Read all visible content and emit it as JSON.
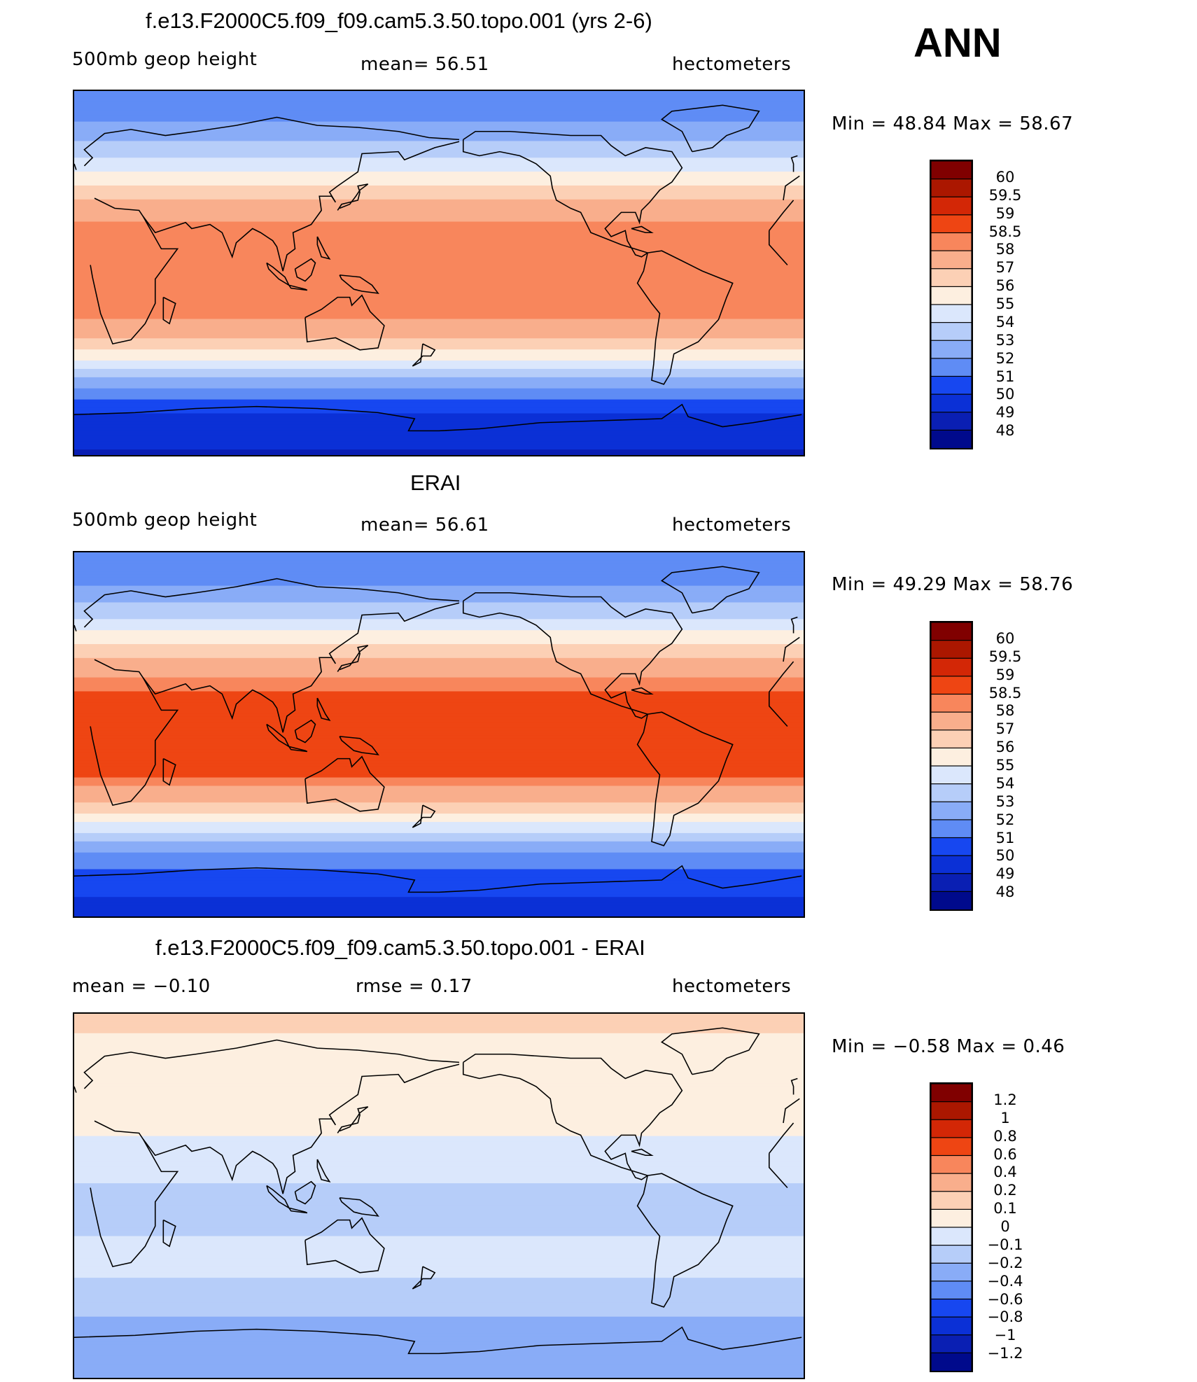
{
  "season": "ANN",
  "colors": {
    "abs_palette": [
      "#000a8c",
      "#0a1fb3",
      "#0b30d6",
      "#1747f0",
      "#3568f2",
      "#5f8cf5",
      "#89acf7",
      "#b6cdf9",
      "#dbe7fc",
      "#fdefe0",
      "#fcd0b5",
      "#f9ae8c",
      "#f8865c",
      "#f7632f",
      "#ee4513",
      "#d32706",
      "#ab1700",
      "#800000"
    ],
    "diff_palette": [
      "#000a8c",
      "#0a1fb3",
      "#0b30d6",
      "#1747f0",
      "#3568f2",
      "#5f8cf5",
      "#89acf7",
      "#b6cdf9",
      "#dbe7fc",
      "#fdefe0",
      "#fcd0b5",
      "#f9ae8c",
      "#f8865c",
      "#f7632f",
      "#ee4513",
      "#d32706",
      "#ab1700",
      "#800000"
    ],
    "coast": "#000000"
  },
  "panels": [
    {
      "title": "f.e13.F2000C5.f09_f09.cam5.3.50.topo.001 (yrs 2-6)",
      "left_label": "500mb  geop  height",
      "center_label": "mean=   56.51",
      "right_label": "hectometers",
      "min_label": "Min  =    48.84  Max  =    58.67"
    },
    {
      "title": "ERAI",
      "left_label": "500mb  geop  height",
      "center_label": "mean=   56.61",
      "right_label": "hectometers",
      "min_label": "Min  =    49.29  Max  =    58.76"
    },
    {
      "title": "f.e13.F2000C5.f09_f09.cam5.3.50.topo.001 - ERAI",
      "left_label": "mean  =    −0.10",
      "center_label": "rmse  =     0.17",
      "right_label": "hectometers",
      "min_label": "Min  =    −0.58  Max  =     0.46"
    }
  ],
  "chart_data": [
    {
      "type": "heatmap",
      "title": "f.e13.F2000C5.f09_f09.cam5.3.50.topo.001 (yrs 2-6)",
      "variable": "500mb geop height",
      "units": "hectometers",
      "mean": 56.51,
      "min": 48.84,
      "max": 58.67,
      "levels": [
        "48",
        "49",
        "50",
        "51",
        "52",
        "53",
        "54",
        "55",
        "56",
        "57",
        "58",
        "58.5",
        "59",
        "59.5",
        "60"
      ],
      "lat_profile": [
        [
          -90,
          48.9
        ],
        [
          -80,
          49.3
        ],
        [
          -70,
          50.0
        ],
        [
          -60,
          51.3
        ],
        [
          -50,
          53.4
        ],
        [
          -40,
          55.6
        ],
        [
          -30,
          57.4
        ],
        [
          -20,
          58.2
        ],
        [
          -10,
          58.4
        ],
        [
          0,
          58.3
        ],
        [
          10,
          58.3
        ],
        [
          20,
          58.5
        ],
        [
          30,
          57.6
        ],
        [
          40,
          56.6
        ],
        [
          50,
          55.0
        ],
        [
          60,
          53.6
        ],
        [
          70,
          52.5
        ],
        [
          80,
          51.4
        ],
        [
          90,
          51.0
        ]
      ]
    },
    {
      "type": "heatmap",
      "title": "ERAI",
      "variable": "500mb geop height",
      "units": "hectometers",
      "mean": 56.61,
      "min": 49.29,
      "max": 58.76,
      "levels": [
        "48",
        "49",
        "50",
        "51",
        "52",
        "53",
        "54",
        "55",
        "56",
        "57",
        "58",
        "58.5",
        "59",
        "59.5",
        "60"
      ],
      "lat_profile": [
        [
          -90,
          49.7
        ],
        [
          -80,
          50.0
        ],
        [
          -70,
          50.6
        ],
        [
          -60,
          51.6
        ],
        [
          -50,
          53.6
        ],
        [
          -40,
          55.8
        ],
        [
          -30,
          57.6
        ],
        [
          -20,
          58.6
        ],
        [
          -10,
          58.7
        ],
        [
          0,
          58.7
        ],
        [
          10,
          58.7
        ],
        [
          20,
          58.6
        ],
        [
          30,
          57.8
        ],
        [
          40,
          56.7
        ],
        [
          50,
          55.2
        ],
        [
          60,
          53.6
        ],
        [
          70,
          52.4
        ],
        [
          80,
          51.4
        ],
        [
          90,
          51.0
        ]
      ]
    },
    {
      "type": "heatmap",
      "title": "f.e13.F2000C5.f09_f09.cam5.3.50.topo.001 - ERAI",
      "units": "hectometers",
      "mean": -0.1,
      "rmse": 0.17,
      "min": -0.58,
      "max": 0.46,
      "levels": [
        "−1.2",
        "−1",
        "−0.8",
        "−0.6",
        "−0.4",
        "−0.2",
        "−0.1",
        "0",
        "0.1",
        "0.2",
        "0.4",
        "0.6",
        "0.8",
        "1",
        "1.2"
      ],
      "lat_profile": [
        [
          -90,
          -0.4
        ],
        [
          -70,
          -0.3
        ],
        [
          -60,
          -0.2
        ],
        [
          -50,
          -0.15
        ],
        [
          -40,
          -0.1
        ],
        [
          -20,
          -0.1
        ],
        [
          0,
          -0.12
        ],
        [
          20,
          -0.05
        ],
        [
          40,
          0.05
        ],
        [
          60,
          0.0
        ],
        [
          80,
          0.1
        ],
        [
          90,
          0.15
        ]
      ]
    }
  ],
  "colorbars": [
    {
      "labels": [
        "60",
        "59.5",
        "59",
        "58.5",
        "58",
        "57",
        "56",
        "55",
        "54",
        "53",
        "52",
        "51",
        "50",
        "49",
        "48"
      ]
    },
    {
      "labels": [
        "60",
        "59.5",
        "59",
        "58.5",
        "58",
        "57",
        "56",
        "55",
        "54",
        "53",
        "52",
        "51",
        "50",
        "49",
        "48"
      ]
    },
    {
      "labels": [
        "1.2",
        "1",
        "0.8",
        "0.6",
        "0.4",
        "0.2",
        "0.1",
        "0",
        "−0.1",
        "−0.2",
        "−0.4",
        "−0.6",
        "−0.8",
        "−1",
        "−1.2"
      ]
    }
  ]
}
